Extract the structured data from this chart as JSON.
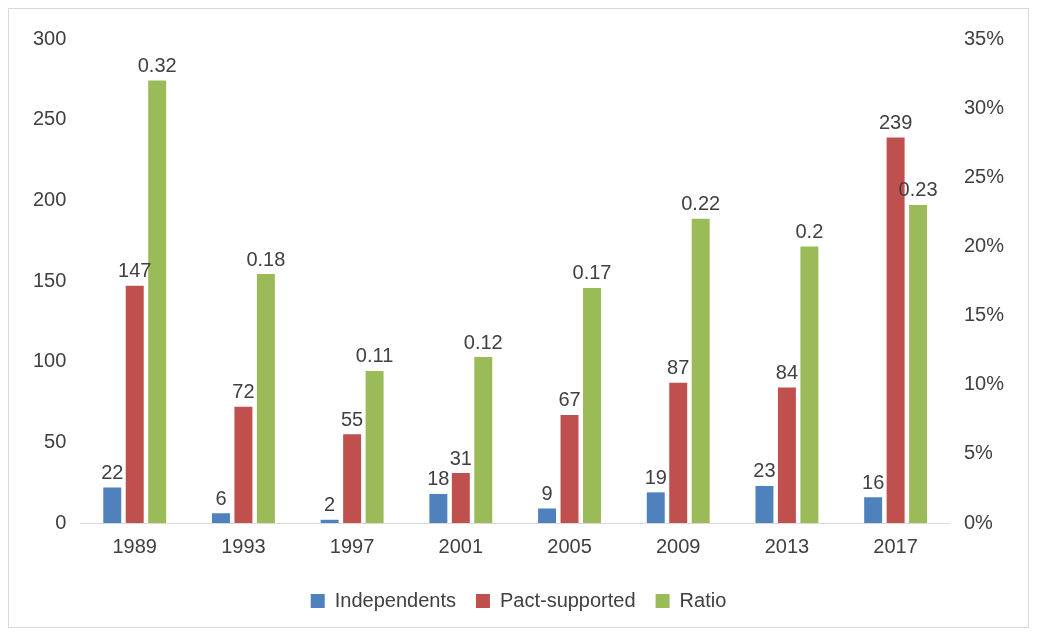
{
  "chart_data": {
    "type": "bar",
    "categories": [
      "1989",
      "1993",
      "1997",
      "2001",
      "2005",
      "2009",
      "2013",
      "2017"
    ],
    "series": [
      {
        "name": "Independents",
        "color": "#4f81bd",
        "values": [
          22,
          6,
          2,
          18,
          9,
          19,
          23,
          16
        ]
      },
      {
        "name": "Pact-supported",
        "color": "#c0504d",
        "values": [
          147,
          72,
          55,
          31,
          67,
          87,
          84,
          239
        ]
      },
      {
        "name": "Ratio",
        "color": "#9bbb59",
        "axis": "y2",
        "values": [
          0.32,
          0.18,
          0.11,
          0.12,
          0.17,
          0.22,
          0.2,
          0.23
        ]
      }
    ],
    "ylim": [
      0,
      300
    ],
    "yticks": [
      0,
      50,
      100,
      150,
      200,
      250,
      300
    ],
    "y2lim": [
      0,
      0.35
    ],
    "y2ticks": [
      {
        "value": 0,
        "label": "0%"
      },
      {
        "value": 0.05,
        "label": "5%"
      },
      {
        "value": 0.1,
        "label": "10%"
      },
      {
        "value": 0.15,
        "label": "15%"
      },
      {
        "value": 0.2,
        "label": "20%"
      },
      {
        "value": 0.25,
        "label": "25%"
      },
      {
        "value": 0.3,
        "label": "30%"
      },
      {
        "value": 0.35,
        "label": "35%"
      }
    ],
    "data_labels": true,
    "legend": "bottom",
    "grid": false
  }
}
